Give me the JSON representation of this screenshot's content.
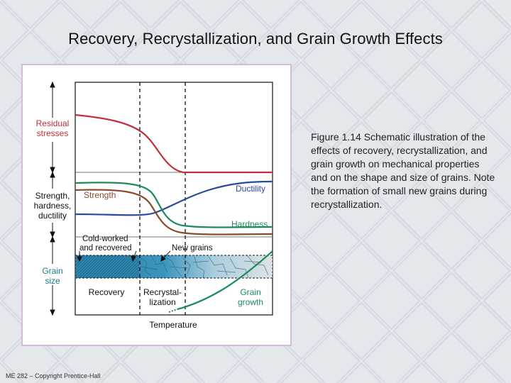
{
  "slide": {
    "title": "Recovery, Recrystallization, and Grain Growth Effects",
    "caption": "Figure 1.14  Schematic illustration of the effects of recovery, recrystallization, and grain growth on mechanical properties and on the shape and size of grains.  Note the formation of small new grains during recrystallization.",
    "footer": "ME 282 – Copyright Prentice-Hall"
  },
  "figure": {
    "labels": {
      "residual_line1": "Residual",
      "residual_line2": "stresses",
      "props_line1": "Strength,",
      "props_line2": "hardness,",
      "props_line3": "ductility",
      "grain_line1": "Grain",
      "grain_line2": "size",
      "strength": "Strength",
      "ductility": "Ductility",
      "hardness": "Hardness",
      "cold_worked_line1": "Cold-worked",
      "cold_worked_line2": "and recovered",
      "new_grains": "New grains",
      "recovery": "Recovery",
      "recryst_line1": "Recrystal-",
      "recryst_line2": "lization",
      "grain_growth_line1": "Grain",
      "grain_growth_line2": "growth",
      "temperature": "Temperature"
    },
    "colors": {
      "residual_stress": "#c0303a",
      "strength": "#8a4a2a",
      "hardness": "#1e8a5a",
      "ductility": "#2a4aa0",
      "grain_growth": "#1e8a5a",
      "label_red": "#c0303a",
      "label_teal": "#1e7a80",
      "label_brown": "#8a4a2a",
      "label_blue": "#2a4aa0",
      "label_green": "#1e8a5a"
    }
  }
}
